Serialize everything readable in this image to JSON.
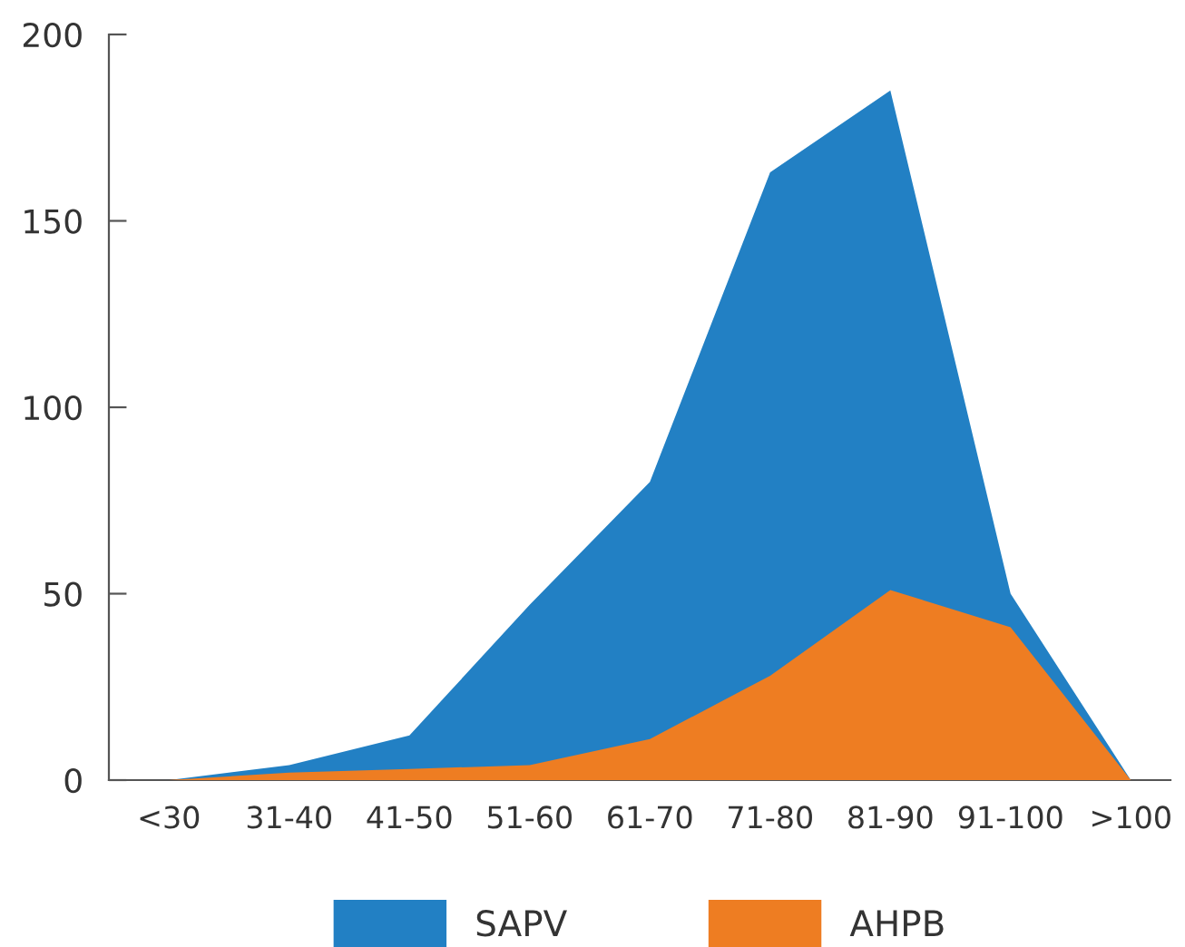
{
  "chart_data": {
    "type": "area",
    "categories": [
      "<30",
      "31-40",
      "41-50",
      "51-60",
      "61-70",
      "71-80",
      "81-90",
      "91-100",
      ">100"
    ],
    "series": [
      {
        "name": "SAPV",
        "color": "#2280c4",
        "values": [
          0,
          4,
          12,
          47,
          80,
          163,
          185,
          50,
          0
        ]
      },
      {
        "name": "AHPB",
        "color": "#ee7d22",
        "values": [
          0,
          2,
          3,
          4,
          11,
          28,
          51,
          41,
          0
        ]
      }
    ],
    "ylim": [
      0,
      200
    ],
    "yticks": [
      0,
      50,
      100,
      150,
      200
    ],
    "grid": false,
    "legend": "bottom"
  }
}
